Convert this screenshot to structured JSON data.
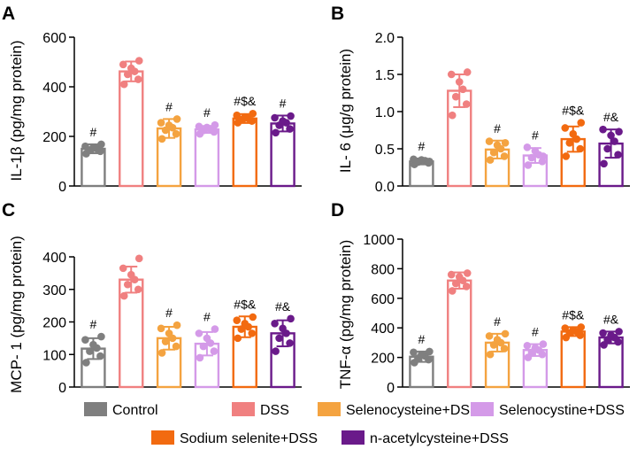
{
  "colors": {
    "Control": "#7f7f7f",
    "DSS": "#f08080",
    "Selenocysteine+DSS": "#f4a340",
    "Selenocystine+DSS": "#d49ae8",
    "Sodium selenite+DSS": "#f26a10",
    "n-acetylcysteine+DSS": "#6a1a8a"
  },
  "legend": {
    "items": [
      "Control",
      "DSS",
      "Selenocysteine+DSS",
      "Selenocystine+DSS",
      "Sodium selenite+DSS",
      "n-acetylcysteine+DSS"
    ]
  },
  "chart_data": [
    {
      "panel": "A",
      "type": "bar",
      "ylabel": "IL-1β (pg/mg protein)",
      "ylim": [
        0,
        600
      ],
      "yticks": [
        "0",
        "200",
        "400",
        "600"
      ],
      "categories": [
        "Control",
        "DSS",
        "Selenocysteine+DSS",
        "Selenocystine+DSS",
        "Sodium selenite+DSS",
        "n-acetylcysteine+DSS"
      ],
      "values": [
        150,
        462,
        232,
        228,
        272,
        252
      ],
      "errors": [
        18,
        40,
        38,
        14,
        18,
        32
      ],
      "annotations": [
        "#",
        "",
        "#",
        "#",
        "#$&",
        "#"
      ],
      "points": [
        [
          130,
          140,
          145,
          150,
          155,
          160,
          168
        ],
        [
          410,
          430,
          450,
          462,
          475,
          490,
          505
        ],
        [
          190,
          210,
          225,
          235,
          245,
          255,
          270
        ],
        [
          210,
          218,
          224,
          230,
          236,
          240,
          246
        ],
        [
          255,
          262,
          268,
          272,
          278,
          285,
          292
        ],
        [
          215,
          230,
          245,
          255,
          262,
          275,
          282
        ]
      ]
    },
    {
      "panel": "B",
      "type": "bar",
      "ylabel": "IL- 6 (μg/g protein)",
      "ylim": [
        0,
        2.0
      ],
      "yticks": [
        "0.0",
        "0.5",
        "1.0",
        "1.5",
        "2.0"
      ],
      "categories": [
        "Control",
        "DSS",
        "Selenocysteine+DSS",
        "Selenocystine+DSS",
        "Sodium selenite+DSS",
        "n-acetylcysteine+DSS"
      ],
      "values": [
        0.33,
        1.28,
        0.49,
        0.41,
        0.63,
        0.57
      ],
      "errors": [
        0.04,
        0.22,
        0.12,
        0.1,
        0.17,
        0.19
      ],
      "annotations": [
        "#",
        "",
        "#",
        "#",
        "#$&",
        "#&"
      ],
      "points": [
        [
          0.29,
          0.31,
          0.32,
          0.34,
          0.35,
          0.36,
          0.33
        ],
        [
          0.95,
          1.1,
          1.2,
          1.3,
          1.4,
          1.5,
          1.53
        ],
        [
          0.35,
          0.4,
          0.45,
          0.5,
          0.55,
          0.6,
          0.58
        ],
        [
          0.28,
          0.33,
          0.38,
          0.42,
          0.47,
          0.52,
          0.4
        ],
        [
          0.4,
          0.5,
          0.58,
          0.63,
          0.7,
          0.78,
          0.85
        ],
        [
          0.3,
          0.42,
          0.5,
          0.6,
          0.68,
          0.76,
          0.73
        ]
      ]
    },
    {
      "panel": "C",
      "type": "bar",
      "ylabel": "MCP- 1 (pg/mg protein)",
      "ylim": [
        0,
        400
      ],
      "yticks": [
        "0",
        "100",
        "200",
        "300",
        "400"
      ],
      "categories": [
        "Control",
        "DSS",
        "Selenocysteine+DSS",
        "Selenocystine+DSS",
        "Sodium selenite+DSS",
        "n-acetylcysteine+DSS"
      ],
      "values": [
        118,
        330,
        150,
        133,
        185,
        165
      ],
      "errors": [
        32,
        40,
        35,
        36,
        32,
        40
      ],
      "annotations": [
        "#",
        "",
        "#",
        "#",
        "#$&",
        "#&"
      ],
      "points": [
        [
          75,
          95,
          110,
          120,
          130,
          145,
          155
        ],
        [
          280,
          300,
          315,
          330,
          345,
          365,
          395
        ],
        [
          105,
          125,
          140,
          150,
          165,
          180,
          190
        ],
        [
          90,
          110,
          125,
          135,
          150,
          165,
          178
        ],
        [
          150,
          165,
          178,
          185,
          195,
          205,
          215
        ],
        [
          110,
          135,
          150,
          165,
          180,
          195,
          210
        ]
      ]
    },
    {
      "panel": "D",
      "type": "bar",
      "ylabel": "TNF-α (pg/mg protein)",
      "ylim": [
        0,
        1000
      ],
      "yticks": [
        "0",
        "200",
        "400",
        "600",
        "800",
        "1000"
      ],
      "categories": [
        "Control",
        "DSS",
        "Selenocysteine+DSS",
        "Selenocystine+DSS",
        "Sodium selenite+DSS",
        "n-acetylcysteine+DSS"
      ],
      "values": [
        205,
        720,
        300,
        250,
        375,
        335
      ],
      "errors": [
        35,
        55,
        60,
        40,
        30,
        40
      ],
      "annotations": [
        "#",
        "",
        "#",
        "#",
        "#$&",
        "#&"
      ],
      "points": [
        [
          165,
          185,
          195,
          210,
          220,
          235,
          240
        ],
        [
          650,
          680,
          700,
          720,
          745,
          760,
          770
        ],
        [
          220,
          260,
          285,
          300,
          320,
          345,
          360
        ],
        [
          200,
          220,
          235,
          250,
          265,
          280,
          290
        ],
        [
          335,
          350,
          365,
          375,
          385,
          398,
          405
        ],
        [
          285,
          305,
          320,
          335,
          350,
          365,
          375
        ]
      ]
    }
  ]
}
